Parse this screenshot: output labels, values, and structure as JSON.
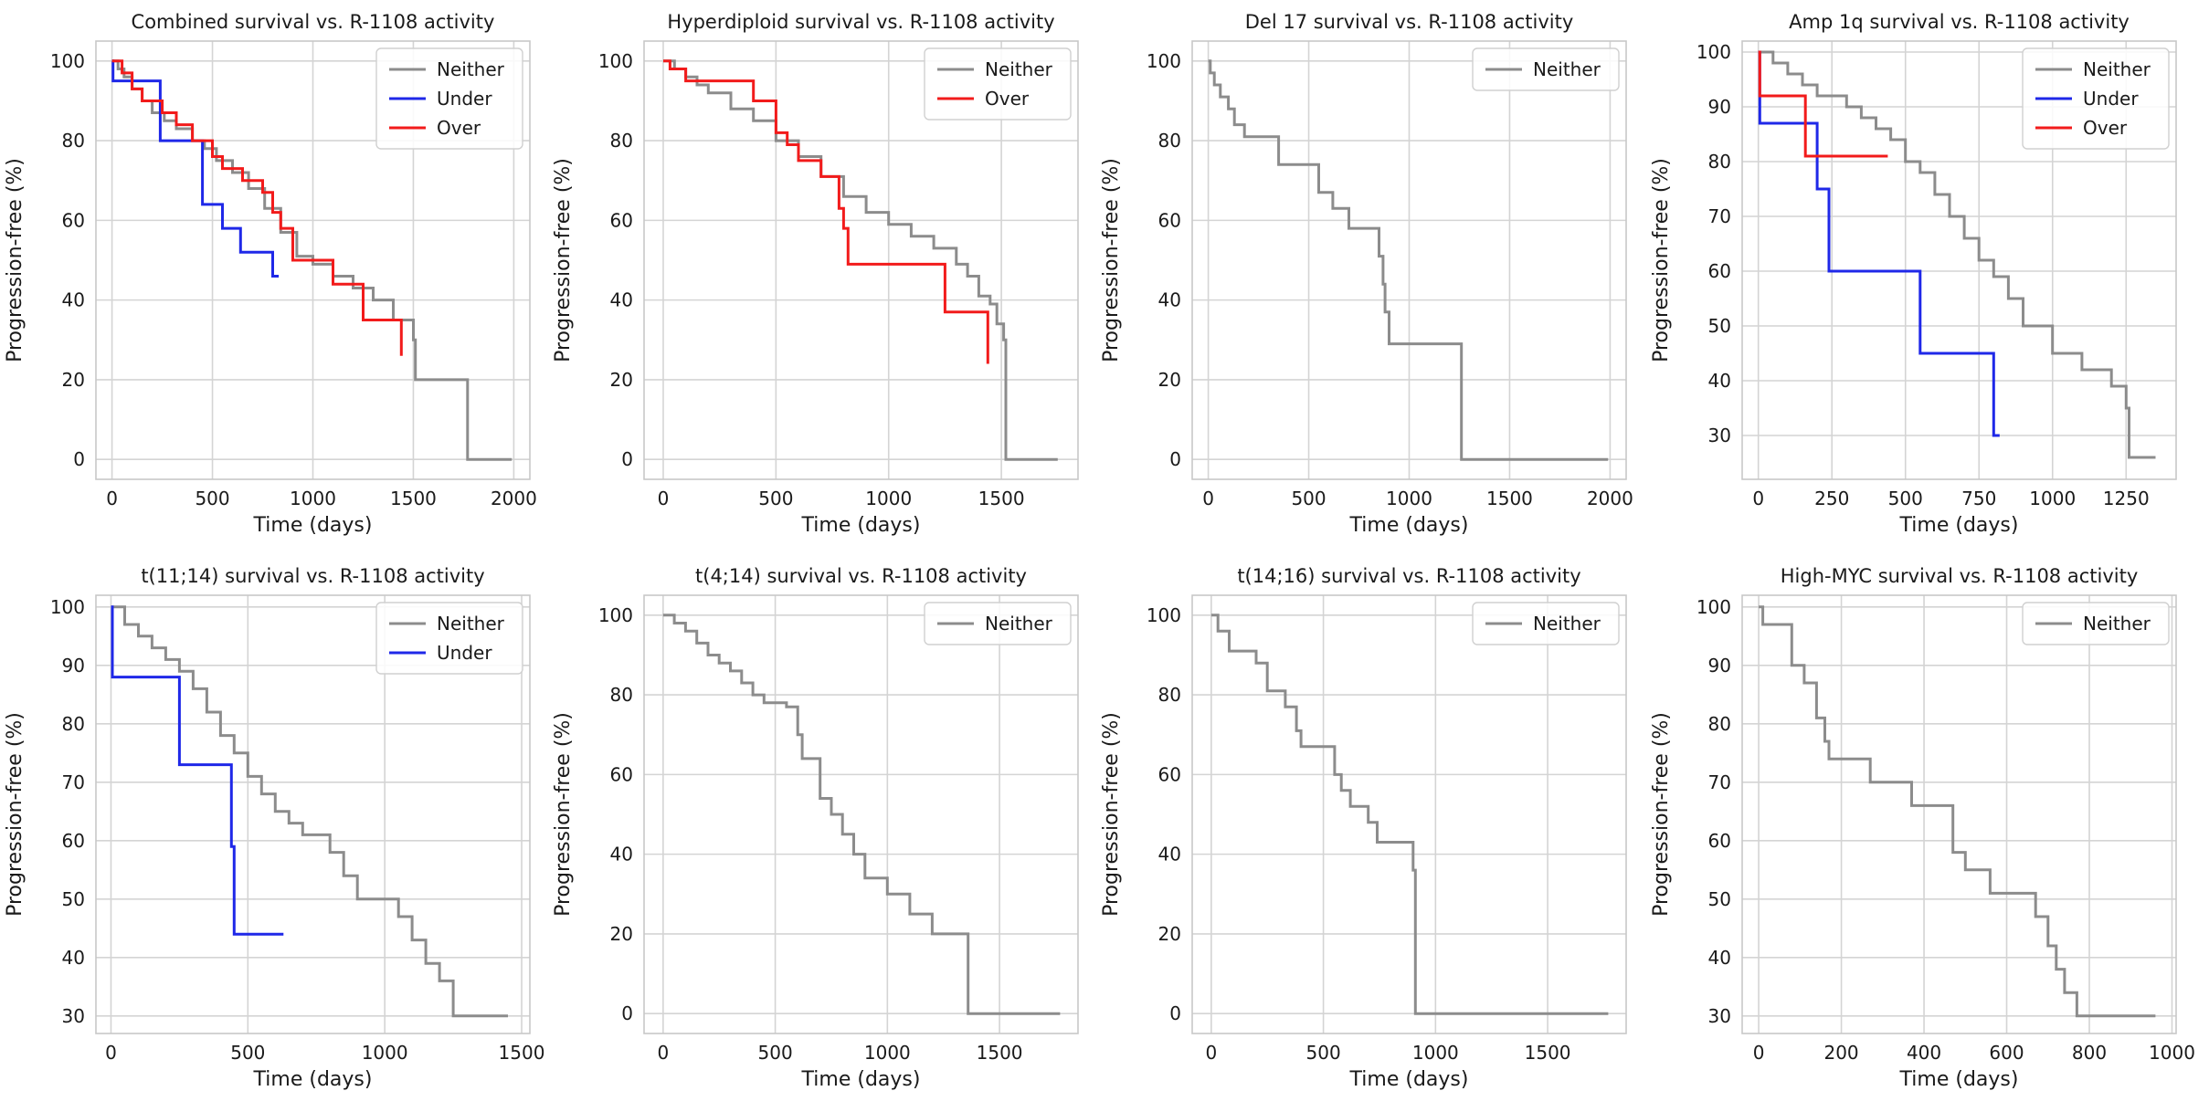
{
  "figure_title": "",
  "chart_data": [
    {
      "type": "line",
      "title": "Combined survival vs. R-1108 activity",
      "xlabel": "Time (days)",
      "ylabel": "Progression-free (%)",
      "xlim": [
        -80,
        2080
      ],
      "ylim": [
        -5,
        105
      ],
      "xticks": [
        0,
        500,
        1000,
        1500,
        2000
      ],
      "yticks": [
        0,
        20,
        40,
        60,
        80,
        100
      ],
      "legend_position": "top-right",
      "series": [
        {
          "name": "Neither",
          "color": "#8c8c8c",
          "x": [
            0,
            30,
            60,
            100,
            150,
            200,
            260,
            320,
            400,
            460,
            520,
            600,
            680,
            760,
            840,
            920,
            1000,
            1100,
            1200,
            1300,
            1400,
            1500,
            1510,
            1760,
            1770,
            1990
          ],
          "y": [
            100,
            98,
            96,
            93,
            90,
            87,
            85,
            83,
            80,
            78,
            75,
            72,
            68,
            63,
            57,
            51,
            49,
            46,
            43,
            40,
            35,
            30,
            20,
            20,
            0,
            0
          ]
        },
        {
          "name": "Under",
          "color": "#1f28e8",
          "x": [
            0,
            5,
            215,
            240,
            440,
            450,
            550,
            640,
            800,
            830
          ],
          "y": [
            100,
            95,
            95,
            80,
            80,
            64,
            58,
            52,
            46,
            46
          ]
        },
        {
          "name": "Over",
          "color": "#f21b1b",
          "x": [
            0,
            50,
            100,
            150,
            250,
            320,
            400,
            500,
            550,
            650,
            750,
            800,
            840,
            900,
            1000,
            1100,
            1200,
            1250,
            1420,
            1440
          ],
          "y": [
            100,
            97,
            93,
            90,
            87,
            84,
            80,
            76,
            73,
            70,
            67,
            62,
            58,
            50,
            50,
            44,
            44,
            35,
            35,
            26
          ]
        }
      ]
    },
    {
      "type": "line",
      "title": "Hyperdiploid survival vs. R-1108 activity",
      "xlabel": "Time (days)",
      "ylabel": "Progression-free (%)",
      "xlim": [
        -85,
        1840
      ],
      "ylim": [
        -5,
        105
      ],
      "xticks": [
        0,
        500,
        1000,
        1500
      ],
      "yticks": [
        0,
        20,
        40,
        60,
        80,
        100
      ],
      "legend_position": "top-right",
      "series": [
        {
          "name": "Neither",
          "color": "#8c8c8c",
          "x": [
            0,
            50,
            100,
            150,
            200,
            300,
            400,
            500,
            600,
            700,
            800,
            900,
            1000,
            1100,
            1200,
            1300,
            1350,
            1400,
            1450,
            1480,
            1510,
            1520,
            1750
          ],
          "y": [
            100,
            98,
            96,
            94,
            92,
            88,
            85,
            80,
            76,
            71,
            66,
            62,
            59,
            56,
            53,
            49,
            46,
            41,
            39,
            34,
            30,
            0,
            0
          ]
        },
        {
          "name": "Over",
          "color": "#f21b1b",
          "x": [
            0,
            30,
            100,
            350,
            400,
            500,
            550,
            600,
            700,
            780,
            800,
            820,
            1250,
            1420,
            1440
          ],
          "y": [
            100,
            98,
            95,
            95,
            90,
            82,
            79,
            75,
            71,
            63,
            58,
            49,
            37,
            37,
            24
          ]
        }
      ]
    },
    {
      "type": "line",
      "title": "Del 17 survival vs. R-1108 activity",
      "xlabel": "Time (days)",
      "ylabel": "Progression-free (%)",
      "xlim": [
        -80,
        2080
      ],
      "ylim": [
        -5,
        105
      ],
      "xticks": [
        0,
        500,
        1000,
        1500,
        2000
      ],
      "yticks": [
        0,
        20,
        40,
        60,
        80,
        100
      ],
      "legend_position": "top-right",
      "series": [
        {
          "name": "Neither",
          "color": "#8c8c8c",
          "x": [
            0,
            10,
            30,
            60,
            100,
            130,
            180,
            350,
            550,
            620,
            700,
            850,
            870,
            880,
            900,
            1250,
            1260,
            1990
          ],
          "y": [
            100,
            97,
            94,
            91,
            88,
            84,
            81,
            74,
            67,
            63,
            58,
            51,
            44,
            37,
            29,
            29,
            0,
            0
          ]
        }
      ]
    },
    {
      "type": "line",
      "title": "Amp 1q survival vs. R-1108 activity",
      "xlabel": "Time (days)",
      "ylabel": "Progression-free (%)",
      "xlim": [
        -55,
        1420
      ],
      "ylim": [
        22,
        102
      ],
      "xticks": [
        0,
        250,
        500,
        750,
        1000,
        1250
      ],
      "yticks": [
        30,
        40,
        50,
        60,
        70,
        80,
        90,
        100
      ],
      "legend_position": "top-right",
      "series": [
        {
          "name": "Neither",
          "color": "#8c8c8c",
          "x": [
            0,
            50,
            100,
            150,
            200,
            300,
            350,
            400,
            450,
            500,
            550,
            600,
            650,
            700,
            750,
            800,
            850,
            900,
            1000,
            1100,
            1200,
            1250,
            1260,
            1350
          ],
          "y": [
            100,
            98,
            96,
            94,
            92,
            90,
            88,
            86,
            84,
            80,
            78,
            74,
            70,
            66,
            62,
            59,
            55,
            50,
            45,
            42,
            39,
            35,
            26,
            26
          ]
        },
        {
          "name": "Under",
          "color": "#1f28e8",
          "x": [
            0,
            5,
            200,
            240,
            550,
            800,
            820
          ],
          "y": [
            100,
            87,
            75,
            60,
            45,
            30,
            30
          ]
        },
        {
          "name": "Over",
          "color": "#f21b1b",
          "x": [
            0,
            5,
            160,
            440
          ],
          "y": [
            100,
            92,
            81,
            81
          ]
        }
      ]
    },
    {
      "type": "line",
      "title": "t(11;14) survival vs. R-1108 activity",
      "xlabel": "Time (days)",
      "ylabel": "Progression-free (%)",
      "xlim": [
        -55,
        1530
      ],
      "ylim": [
        27,
        102
      ],
      "xticks": [
        0,
        500,
        1000,
        1500
      ],
      "yticks": [
        30,
        40,
        50,
        60,
        70,
        80,
        90,
        100
      ],
      "legend_position": "top-right",
      "series": [
        {
          "name": "Neither",
          "color": "#8c8c8c",
          "x": [
            0,
            50,
            100,
            150,
            200,
            250,
            300,
            350,
            400,
            450,
            500,
            550,
            600,
            650,
            700,
            800,
            850,
            900,
            1050,
            1100,
            1150,
            1200,
            1250,
            1450
          ],
          "y": [
            100,
            97,
            95,
            93,
            91,
            89,
            86,
            82,
            78,
            75,
            71,
            68,
            65,
            63,
            61,
            58,
            54,
            50,
            47,
            43,
            39,
            36,
            30,
            30
          ]
        },
        {
          "name": "Under",
          "color": "#1f28e8",
          "x": [
            0,
            5,
            250,
            440,
            450,
            630
          ],
          "y": [
            100,
            88,
            73,
            59,
            44,
            44
          ]
        }
      ]
    },
    {
      "type": "line",
      "title": "t(4;14) survival vs. R-1108 activity",
      "xlabel": "Time (days)",
      "ylabel": "Progression-free (%)",
      "xlim": [
        -85,
        1850
      ],
      "ylim": [
        -5,
        105
      ],
      "xticks": [
        0,
        500,
        1000,
        1500
      ],
      "yticks": [
        0,
        20,
        40,
        60,
        80,
        100
      ],
      "legend_position": "top-right",
      "series": [
        {
          "name": "Neither",
          "color": "#8c8c8c",
          "x": [
            0,
            50,
            100,
            150,
            200,
            250,
            300,
            350,
            400,
            450,
            550,
            600,
            620,
            700,
            750,
            800,
            850,
            900,
            1000,
            1100,
            1200,
            1350,
            1360,
            1770
          ],
          "y": [
            100,
            98,
            96,
            93,
            90,
            88,
            86,
            83,
            80,
            78,
            77,
            70,
            64,
            54,
            50,
            45,
            40,
            34,
            30,
            25,
            20,
            20,
            0,
            0
          ]
        }
      ]
    },
    {
      "type": "line",
      "title": "t(14;16) survival vs. R-1108 activity",
      "xlabel": "Time (days)",
      "ylabel": "Progression-free (%)",
      "xlim": [
        -85,
        1850
      ],
      "ylim": [
        -5,
        105
      ],
      "xticks": [
        0,
        500,
        1000,
        1500
      ],
      "yticks": [
        0,
        20,
        40,
        60,
        80,
        100
      ],
      "legend_position": "top-right",
      "series": [
        {
          "name": "Neither",
          "color": "#8c8c8c",
          "x": [
            0,
            30,
            80,
            200,
            250,
            330,
            380,
            400,
            550,
            580,
            620,
            700,
            740,
            820,
            900,
            910,
            1770
          ],
          "y": [
            100,
            96,
            91,
            88,
            81,
            77,
            71,
            67,
            60,
            56,
            52,
            48,
            43,
            43,
            36,
            0,
            0
          ]
        }
      ]
    },
    {
      "type": "line",
      "title": "High-MYC survival vs. R-1108 activity",
      "xlabel": "Time (days)",
      "ylabel": "Progression-free (%)",
      "xlim": [
        -40,
        1010
      ],
      "ylim": [
        27,
        102
      ],
      "xticks": [
        0,
        200,
        400,
        600,
        800,
        1000
      ],
      "yticks": [
        30,
        40,
        50,
        60,
        70,
        80,
        90,
        100
      ],
      "legend_position": "top-right",
      "series": [
        {
          "name": "Neither",
          "color": "#8c8c8c",
          "x": [
            0,
            10,
            80,
            110,
            140,
            160,
            170,
            250,
            270,
            370,
            470,
            500,
            560,
            670,
            700,
            720,
            740,
            770,
            960
          ],
          "y": [
            100,
            97,
            90,
            87,
            81,
            77,
            74,
            74,
            70,
            66,
            58,
            55,
            51,
            47,
            42,
            38,
            34,
            30,
            30
          ]
        }
      ]
    }
  ]
}
